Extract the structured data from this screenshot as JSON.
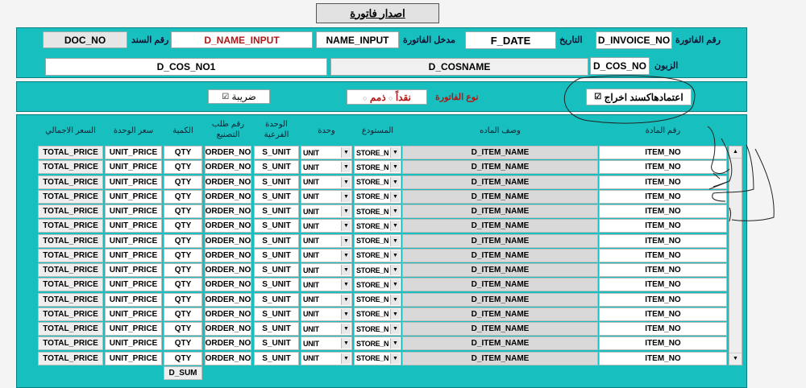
{
  "title_button": "اصدار فاتورة",
  "header": {
    "doc_no": "DOC_NO",
    "doc_no_label": "رقم السند",
    "d_name_input": "D_NAME_INPUT",
    "name_input": "NAME_INPUT",
    "name_input_label": "مدخل الفاتورة",
    "f_date": "F_DATE",
    "f_date_label": "التاريخ",
    "d_invoice_no": "D_INVOICE_NO",
    "invoice_no_label": "رقم الفاتورة",
    "d_cos_no1": "D_COS_NO1",
    "d_cosname": "D_COSNAME",
    "d_cos_no": "D_COS_NO",
    "customer_label": "الزبون"
  },
  "options": {
    "tax_label": "ضريبة",
    "tax_checked": true,
    "invoice_type_label": "نوع الفاتورة",
    "cash_label": "نقداً",
    "credit_label": "ذمم",
    "approve_label": "اعتمادهاكسند اخراج",
    "approve_checked": true
  },
  "colors": {
    "panel": "#17bfbf",
    "red_text": "#b01818"
  },
  "grid": {
    "columns": [
      "السعر الاجمالي",
      "سعر الوحدة",
      "الكمية",
      "رقم طلب التصنيع",
      "الوحدة الفرعية",
      "وحدة",
      "المستودع",
      "وصف الماده",
      "رقم المادة"
    ],
    "row": {
      "total_price": "TOTAL_PRICE",
      "unit_price": "UNIT_PRICE",
      "qty": "QTY",
      "order_no": "ORDER_NO",
      "s_unit": "S_UNIT",
      "unit": "UNIT",
      "store": "STORE_N",
      "item_name": "D_ITEM_NAME",
      "item_no": "ITEM_NO"
    },
    "row_count": 15,
    "sum": "D_SUM"
  }
}
